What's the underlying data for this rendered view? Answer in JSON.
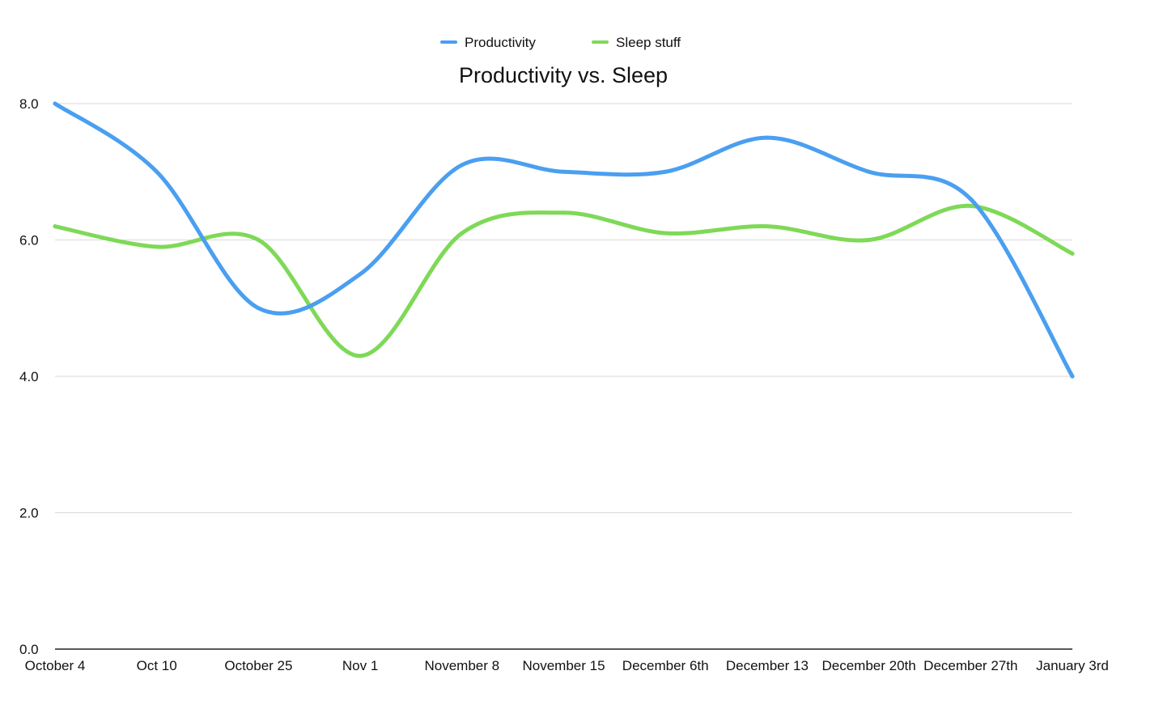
{
  "chart_data": {
    "type": "line",
    "title": "Productivity vs. Sleep",
    "xlabel": "",
    "ylabel": "",
    "categories": [
      "October 4",
      "Oct 10",
      "October 25",
      "Nov 1",
      "November 8",
      "November 15",
      "December 6th",
      "December 13",
      "December 20th",
      "December 27th",
      "January 3rd"
    ],
    "yticks": [
      "0.0",
      "2.0",
      "4.0",
      "6.0",
      "8.0"
    ],
    "ylim": [
      0,
      8
    ],
    "grid": true,
    "legend_position": "top-center",
    "smooth": true,
    "series": [
      {
        "name": "Productivity",
        "color": "#4a9ff0",
        "values": [
          8.0,
          7.0,
          5.0,
          5.5,
          7.1,
          7.0,
          7.0,
          7.5,
          7.0,
          6.6,
          4.0
        ]
      },
      {
        "name": "Sleep stuff",
        "color": "#7ed957",
        "values": [
          6.2,
          5.9,
          6.0,
          4.3,
          6.1,
          6.4,
          6.1,
          6.2,
          6.0,
          6.5,
          5.8
        ]
      }
    ]
  }
}
